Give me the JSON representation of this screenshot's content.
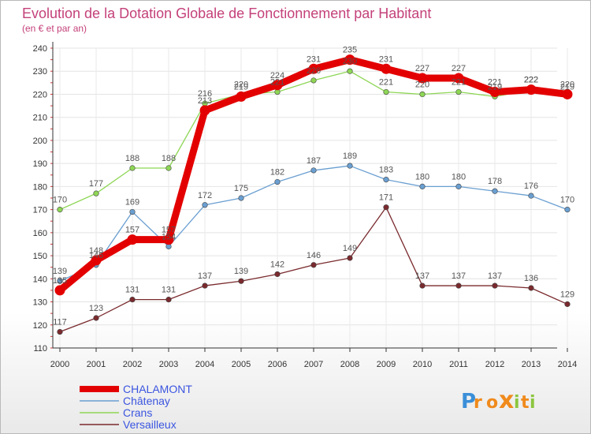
{
  "chart_data": {
    "type": "line",
    "title": "Evolution de la Dotation Globale de Fonctionnement par Habitant",
    "subtitle": "(en € et par an)",
    "x": [
      "2000",
      "2001",
      "2002",
      "2003",
      "2004",
      "2005",
      "2006",
      "2007",
      "2008",
      "2009",
      "2010",
      "2011",
      "2012",
      "2013",
      "2014"
    ],
    "y_ticks": [
      110,
      120,
      130,
      140,
      150,
      160,
      170,
      180,
      190,
      200,
      210,
      220,
      230,
      240
    ],
    "ylim": [
      110,
      240
    ],
    "grid": true,
    "legend_position": "bottom-left",
    "series": [
      {
        "name": "CHALAMONT",
        "color": "#e30000",
        "values": [
          135,
          148,
          157,
          157,
          213,
          219,
          224,
          231,
          235,
          231,
          227,
          227,
          221,
          222,
          220
        ]
      },
      {
        "name": "Châtenay",
        "color": "#6a9fd1",
        "values": [
          139,
          146,
          169,
          154,
          172,
          175,
          182,
          187,
          189,
          183,
          180,
          180,
          178,
          176,
          170
        ]
      },
      {
        "name": "Crans",
        "color": "#8ed655",
        "values": [
          170,
          177,
          188,
          188,
          216,
          220,
          221,
          226,
          230,
          221,
          220,
          221,
          219,
          222,
          219
        ]
      },
      {
        "name": "Versailleux",
        "color": "#7a2a2e",
        "values": [
          117,
          123,
          131,
          131,
          137,
          139,
          142,
          146,
          149,
          171,
          137,
          137,
          137,
          136,
          129
        ]
      }
    ],
    "labels": [
      {
        "series": "CHALAMONT",
        "texts": [
          "135",
          "148",
          "157",
          "157",
          "213",
          "219",
          "224",
          "231",
          "235",
          "231",
          "227",
          "227",
          "221",
          "222",
          "220"
        ]
      },
      {
        "series": "Châtenay",
        "texts": [
          "139",
          "146",
          "169",
          "154",
          "172",
          "175",
          "182",
          "187",
          "189",
          "183",
          "180",
          "180",
          "178",
          "176",
          "170"
        ]
      },
      {
        "series": "Crans",
        "texts": [
          "170",
          "177",
          "188",
          "188",
          "216",
          "220",
          "221",
          "226",
          "230",
          "221",
          "220",
          "221",
          "219",
          "222",
          "219"
        ]
      },
      {
        "series": "Versailleux",
        "texts": [
          "117",
          "123",
          "131",
          "131",
          "137",
          "139",
          "142",
          "146",
          "149",
          "171",
          "137",
          "137",
          "137",
          "136",
          "129"
        ]
      }
    ]
  },
  "brand": {
    "letters": [
      "P",
      "r",
      "o",
      "x",
      "i",
      "t",
      "i"
    ],
    "colors": [
      "#3a8fd8",
      "#f08a1c",
      "#f08a1c",
      "#f08a1c",
      "#8cc63f",
      "#f08a1c",
      "#8cc63f"
    ]
  },
  "colors": {
    "title": "#c4417a",
    "axis": "#333333",
    "grid": "#e6e6e6",
    "legend_text": "#3b55e0"
  }
}
